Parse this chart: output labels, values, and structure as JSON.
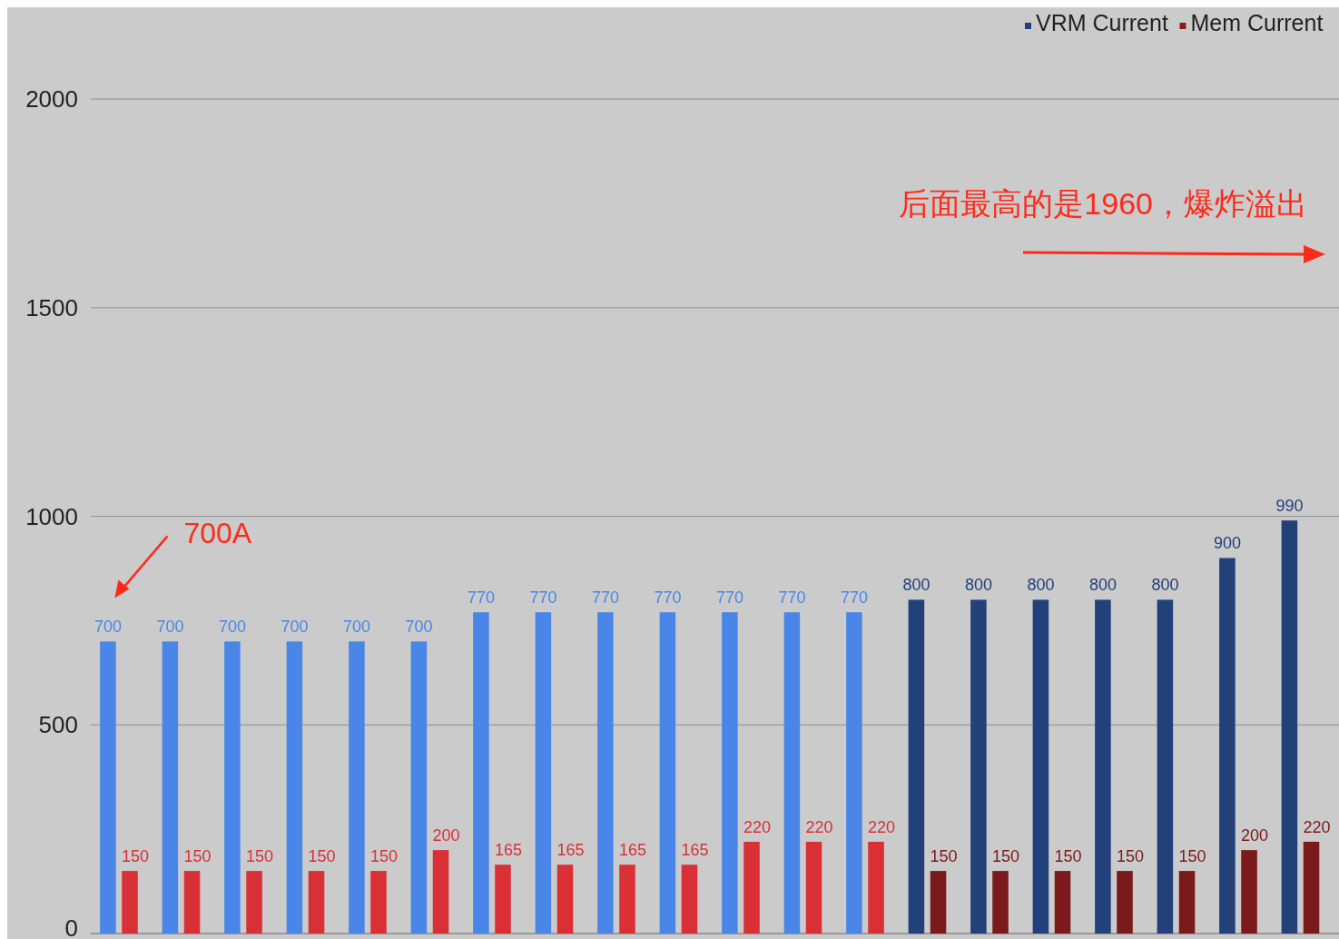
{
  "chart_data": {
    "type": "bar",
    "categories": [
      null,
      null,
      null,
      null,
      null,
      null,
      null,
      null,
      null,
      null,
      null,
      null,
      null,
      null,
      null,
      null,
      null,
      null,
      null,
      null
    ],
    "series": [
      {
        "name": "VRM Current",
        "color": "#22407a",
        "values": [
          700,
          700,
          700,
          700,
          700,
          700,
          770,
          770,
          770,
          770,
          770,
          770,
          770,
          800,
          800,
          800,
          800,
          800,
          900,
          990
        ],
        "colors": [
          "#4a86e8",
          "#4a86e8",
          "#4a86e8",
          "#4a86e8",
          "#4a86e8",
          "#4a86e8",
          "#4a86e8",
          "#4a86e8",
          "#4a86e8",
          "#4a86e8",
          "#4a86e8",
          "#4a86e8",
          "#4a86e8",
          "#22407a",
          "#22407a",
          "#22407a",
          "#22407a",
          "#22407a",
          "#22407a",
          "#22407a"
        ]
      },
      {
        "name": "Mem Current",
        "color": "#8a1c1c",
        "values": [
          150,
          150,
          150,
          150,
          150,
          200,
          165,
          165,
          165,
          165,
          220,
          220,
          220,
          150,
          150,
          150,
          150,
          150,
          200,
          220
        ],
        "colors": [
          "#d93036",
          "#d93036",
          "#d93036",
          "#d93036",
          "#d93036",
          "#d93036",
          "#d93036",
          "#d93036",
          "#d93036",
          "#d93036",
          "#d93036",
          "#d93036",
          "#d93036",
          "#7a1a1a",
          "#7a1a1a",
          "#7a1a1a",
          "#7a1a1a",
          "#7a1a1a",
          "#7a1a1a",
          "#7a1a1a"
        ]
      }
    ],
    "ylim": [
      0,
      2220
    ],
    "yticks": [
      0,
      500,
      1000,
      1500,
      2000
    ],
    "grid": "y",
    "legend": "top right",
    "data_labels": true,
    "annotations": [
      "700A",
      "后面最高的是1960，爆炸溢出"
    ]
  }
}
